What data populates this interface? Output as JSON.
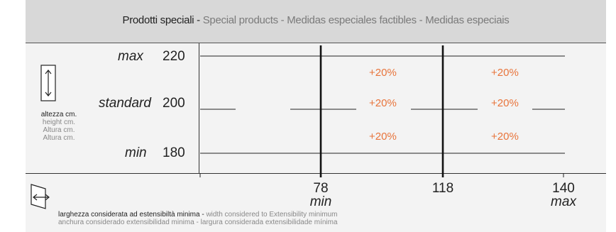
{
  "header": {
    "main": "Prodotti speciali - ",
    "rest": "Special products  - Medidas especiales factibles - Medidas especiais"
  },
  "height": {
    "max_label": "max",
    "max_value": "220",
    "standard_label": "standard",
    "standard_value": "200",
    "min_label": "min",
    "min_value": "180",
    "caption_main": "altezza cm.",
    "caption_lines": [
      "height cm.",
      "Altura cm.",
      "Altura cm."
    ]
  },
  "width": {
    "min_value": "78",
    "min_label": "min",
    "mid_value": "118",
    "max_value": "140",
    "max_label": "max"
  },
  "surcharge": "+20%",
  "footer": {
    "line1_bold": "larghezza considerata ad estensibiltà minima - ",
    "line1_rest": "width considered to Extensibility minimum",
    "line2": "anchura considerado extensibilidad minima - largura considerada extensibilidade mínima"
  },
  "colors": {
    "header_bg": "#d8d8d8",
    "panel_bg": "#f3f3f3",
    "accent": "#e8743b"
  },
  "icons": [
    "height-arrows-icon",
    "width-arrows-icon"
  ]
}
